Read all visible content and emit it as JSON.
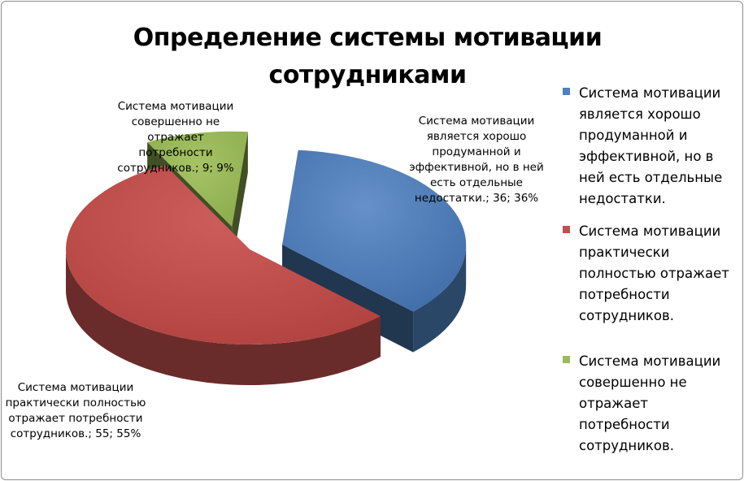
{
  "chart_data": {
    "type": "pie",
    "title": "Определение системы мотивации сотрудниками",
    "three_d": true,
    "exploded": true,
    "legend_position": "right",
    "categories": [
      "Система мотивации является хорошо продуманной и эффективной, но в ней есть отдельные недостатки.",
      "Система мотивации практически полностью отражает потребности сотрудников.",
      "Система мотивации совершенно не отражает потребности сотрудников."
    ],
    "values": [
      36,
      55,
      9
    ],
    "percents": [
      "36%",
      "55%",
      "9%"
    ],
    "colors": [
      "#4F81BD",
      "#C0504D",
      "#9BBB59"
    ],
    "data_labels": [
      "Система мотивации является хорошо продуманной и эффективной, но в ней есть отдельные недостатки.; 36; 36%",
      "Система мотивации практически полностью отражает потребности сотрудников.; 55; 55%",
      "Система мотивации совершенно не отражает потребности сотрудников.; 9; 9%"
    ]
  }
}
